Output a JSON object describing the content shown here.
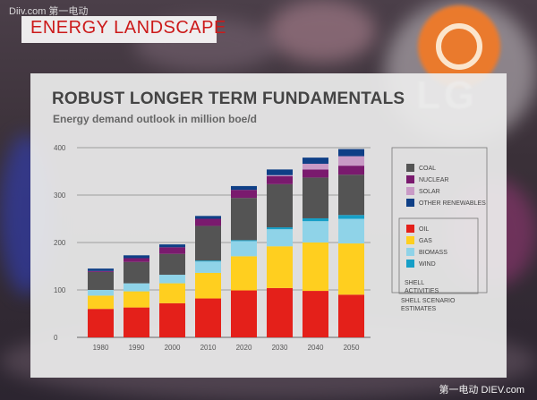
{
  "watermark": "Diiv.com 第一电动",
  "footer_watermark": "第一电动 DIEV.com",
  "header": {
    "title": "ENERGY LANDSCAPE"
  },
  "logo_text": "LG",
  "chart_data": {
    "type": "bar",
    "stacked": true,
    "title": "ROBUST LONGER TERM FUNDAMENTALS",
    "subtitle": "Energy demand outlook in million boe/d",
    "categories": [
      "1980",
      "1990",
      "2000",
      "2010",
      "2020",
      "2030",
      "2040",
      "2050"
    ],
    "ylim": [
      0,
      400
    ],
    "yticks": [
      0,
      100,
      200,
      300,
      400
    ],
    "grid": true,
    "legend_position": "right",
    "series": [
      {
        "name": "OIL",
        "color": "#e4201a",
        "values": [
          60,
          63,
          72,
          82,
          99,
          104,
          98,
          90
        ]
      },
      {
        "name": "GAS",
        "color": "#ffcf1f",
        "values": [
          28,
          34,
          42,
          54,
          72,
          88,
          102,
          108
        ]
      },
      {
        "name": "BIOMASS",
        "color": "#8fd3e8",
        "values": [
          12,
          17,
          18,
          24,
          32,
          36,
          45,
          52
        ]
      },
      {
        "name": "WIND",
        "color": "#169fc7",
        "values": [
          0,
          0,
          0,
          2,
          2,
          4,
          6,
          8
        ]
      },
      {
        "name": "COAL",
        "color": "#545454",
        "values": [
          38,
          45,
          44,
          73,
          89,
          91,
          86,
          85
        ]
      },
      {
        "name": "NUCLEAR",
        "color": "#7a1a6e",
        "values": [
          2,
          8,
          14,
          15,
          17,
          17,
          17,
          19
        ]
      },
      {
        "name": "SOLAR",
        "color": "#c99ac6",
        "values": [
          0,
          0,
          0,
          0,
          0,
          2,
          12,
          20
        ]
      },
      {
        "name": "OTHER RENEWABLES",
        "color": "#0f3f86",
        "values": [
          5,
          6,
          6,
          6,
          8,
          12,
          13,
          15
        ]
      }
    ],
    "legend_group_1": [
      "COAL",
      "NUCLEAR",
      "SOLAR",
      "OTHER RENEWABLES"
    ],
    "legend_group_2": [
      "OIL",
      "GAS",
      "BIOMASS",
      "WIND"
    ],
    "legend_note_1": "SHELL\nACTIVITIES",
    "legend_note_2": "SHELL SCENARIO\nESTIMATES"
  }
}
